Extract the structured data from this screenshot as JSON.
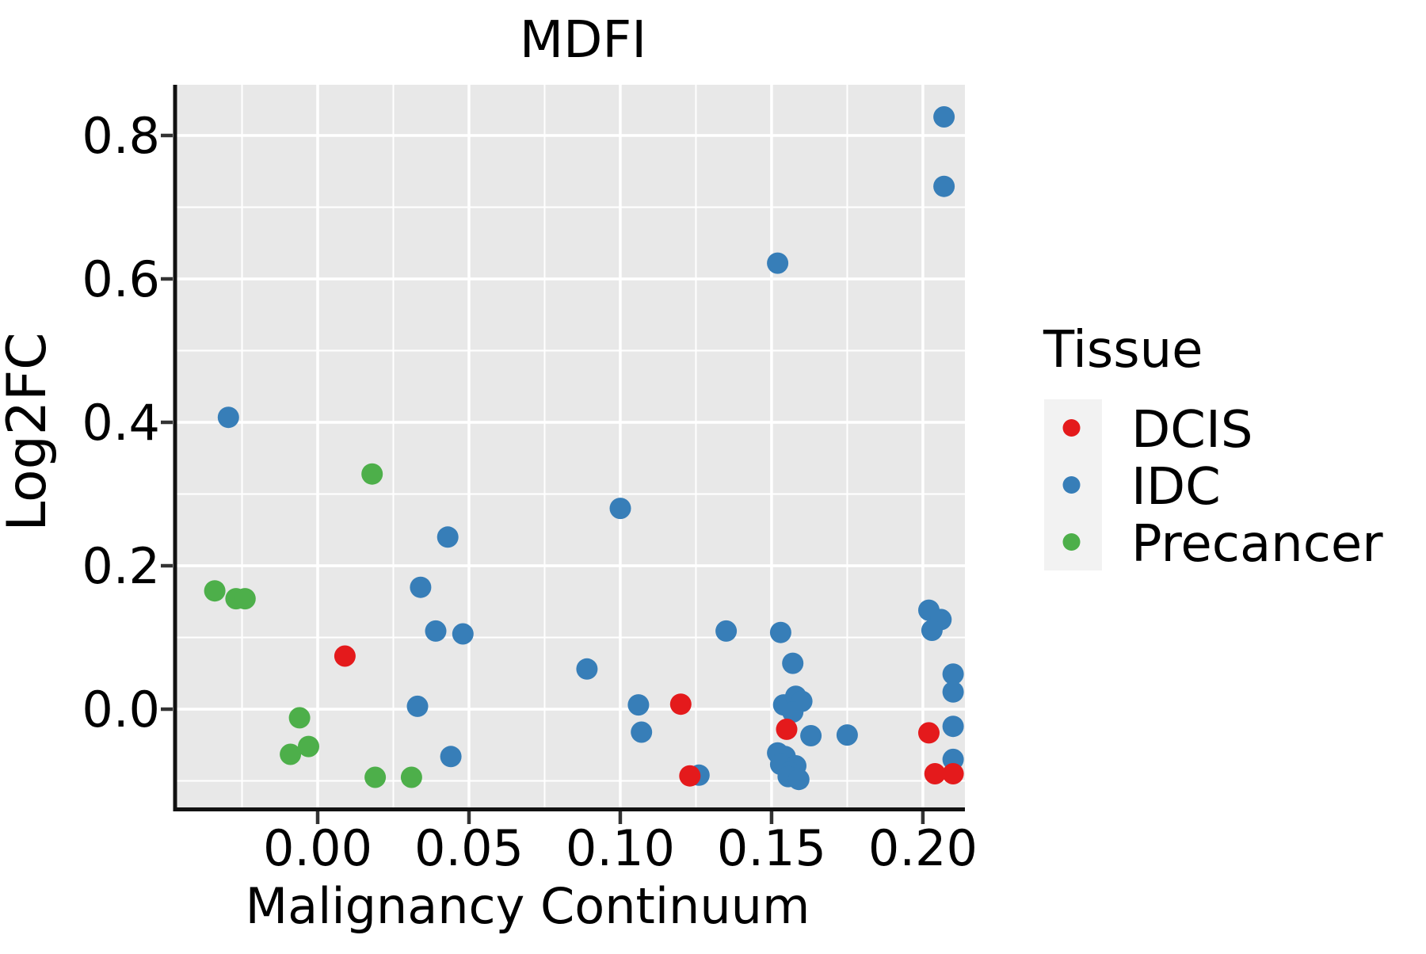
{
  "chart_data": {
    "type": "scatter",
    "title": "MDFI",
    "xlabel": "Malignancy Continuum",
    "ylabel": "Log2FC",
    "xlim": [
      -0.0466,
      0.2139
    ],
    "ylim": [
      -0.1392,
      0.8707
    ],
    "x_ticks": [
      0.0,
      0.05,
      0.1,
      0.15,
      0.2
    ],
    "x_tick_labels": [
      "0.00",
      "0.05",
      "0.10",
      "0.15",
      "0.20"
    ],
    "y_ticks": [
      0.0,
      0.2,
      0.4,
      0.6,
      0.8
    ],
    "y_tick_labels": [
      "0.0",
      "0.2",
      "0.4",
      "0.6",
      "0.8"
    ],
    "x_minor_ticks": [
      -0.025,
      0.025,
      0.075,
      0.125,
      0.175
    ],
    "y_minor_ticks": [
      -0.1,
      0.1,
      0.3,
      0.5,
      0.7
    ],
    "grid": "major+minor",
    "panel_bg": "#e8e8e8",
    "gridline_color": "#ffffff",
    "spine_color": "#111111",
    "tick_color": "#333333",
    "legend": {
      "title": "Tissue",
      "position": "right",
      "key_bg": "#f2f2f2",
      "entries": [
        {
          "label": "DCIS",
          "color": "#e41a1c"
        },
        {
          "label": "IDC",
          "color": "#377eb8"
        },
        {
          "label": "Precancer",
          "color": "#4daf4a"
        }
      ]
    },
    "series": [
      {
        "name": "IDC",
        "color": "#377eb8",
        "points": [
          [
            -0.0295,
            0.407
          ],
          [
            0.034,
            0.17
          ],
          [
            0.043,
            0.24
          ],
          [
            0.039,
            0.109
          ],
          [
            0.048,
            0.105
          ],
          [
            0.033,
            0.004
          ],
          [
            0.044,
            -0.066
          ],
          [
            0.089,
            0.056
          ],
          [
            0.1,
            0.28
          ],
          [
            0.106,
            0.006
          ],
          [
            0.107,
            -0.032
          ],
          [
            0.126,
            -0.092
          ],
          [
            0.135,
            0.109
          ],
          [
            0.152,
            0.622
          ],
          [
            0.153,
            0.107
          ],
          [
            0.157,
            0.064
          ],
          [
            0.154,
            0.006
          ],
          [
            0.158,
            0.018
          ],
          [
            0.16,
            0.011
          ],
          [
            0.157,
            -0.004
          ],
          [
            0.163,
            -0.037
          ],
          [
            0.175,
            -0.036
          ],
          [
            0.152,
            -0.061
          ],
          [
            0.1545,
            -0.066
          ],
          [
            0.153,
            -0.077
          ],
          [
            0.158,
            -0.079
          ],
          [
            0.156,
            -0.088
          ],
          [
            0.1555,
            -0.094
          ],
          [
            0.159,
            -0.098
          ],
          [
            0.202,
            0.138
          ],
          [
            0.206,
            0.125
          ],
          [
            0.203,
            0.11
          ],
          [
            0.21,
            0.049
          ],
          [
            0.21,
            0.024
          ],
          [
            0.21,
            -0.024
          ],
          [
            0.21,
            -0.07
          ],
          [
            0.207,
            0.826
          ],
          [
            0.207,
            0.729
          ]
        ]
      },
      {
        "name": "Precancer",
        "color": "#4daf4a",
        "points": [
          [
            -0.034,
            0.165
          ],
          [
            -0.027,
            0.154
          ],
          [
            -0.024,
            0.154
          ],
          [
            0.018,
            0.328
          ],
          [
            -0.006,
            -0.012
          ],
          [
            -0.003,
            -0.052
          ],
          [
            -0.009,
            -0.063
          ],
          [
            0.019,
            -0.095
          ],
          [
            0.031,
            -0.095
          ]
        ]
      },
      {
        "name": "DCIS",
        "color": "#e41a1c",
        "points": [
          [
            0.009,
            0.074
          ],
          [
            0.12,
            0.007
          ],
          [
            0.123,
            -0.093
          ],
          [
            0.155,
            -0.028
          ],
          [
            0.202,
            -0.033
          ],
          [
            0.204,
            -0.09
          ],
          [
            0.21,
            -0.09
          ]
        ]
      }
    ],
    "marker_radius": 13.5,
    "legend_marker_radius": 11
  }
}
